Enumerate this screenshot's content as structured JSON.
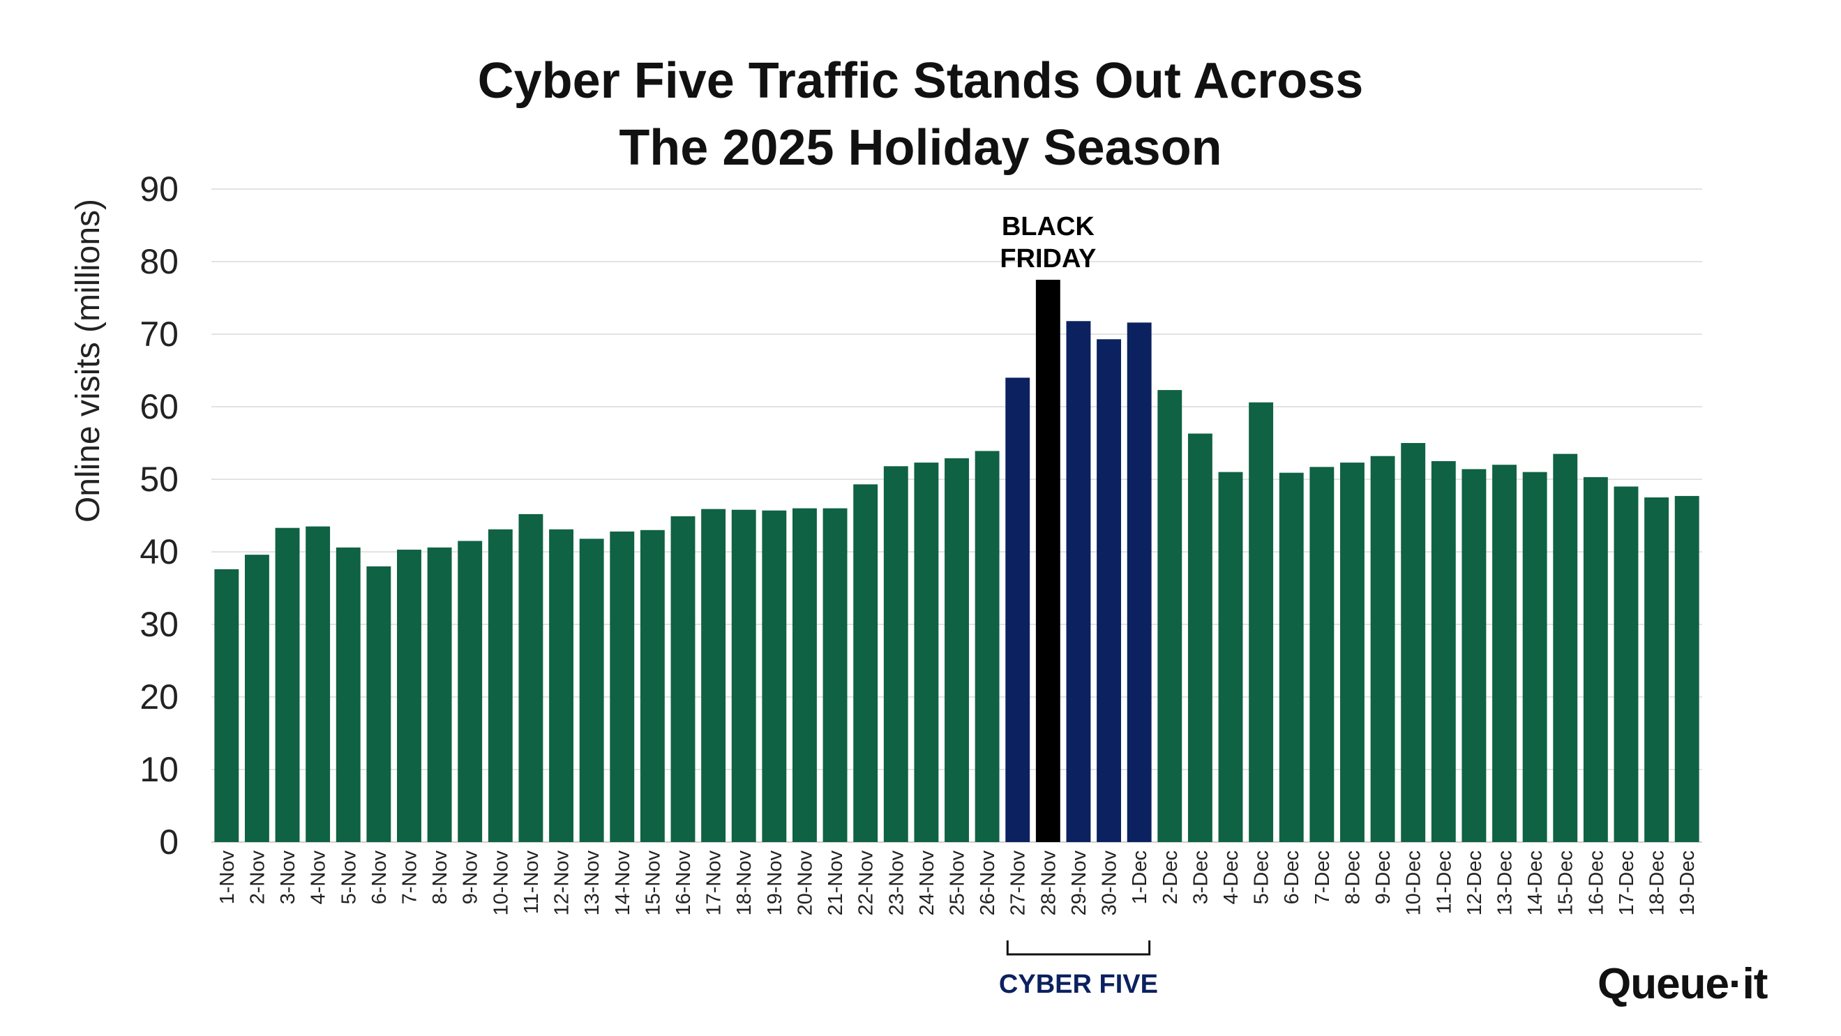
{
  "chart_data": {
    "type": "bar",
    "title": [
      "Cyber Five Traffic Stands Out Across",
      "The 2025 Holiday Season"
    ],
    "ylabel": "Online visits (millions)",
    "xlabel": "",
    "ylim": [
      0,
      90
    ],
    "yticks": [
      0,
      10,
      20,
      30,
      40,
      50,
      60,
      70,
      80,
      90
    ],
    "grid": true,
    "categories": [
      "1-Nov",
      "2-Nov",
      "3-Nov",
      "4-Nov",
      "5-Nov",
      "6-Nov",
      "7-Nov",
      "8-Nov",
      "9-Nov",
      "10-Nov",
      "11-Nov",
      "12-Nov",
      "13-Nov",
      "14-Nov",
      "15-Nov",
      "16-Nov",
      "17-Nov",
      "18-Nov",
      "19-Nov",
      "20-Nov",
      "21-Nov",
      "22-Nov",
      "23-Nov",
      "24-Nov",
      "25-Nov",
      "26-Nov",
      "27-Nov",
      "28-Nov",
      "29-Nov",
      "30-Nov",
      "1-Dec",
      "2-Dec",
      "3-Dec",
      "4-Dec",
      "5-Dec",
      "6-Dec",
      "7-Dec",
      "8-Dec",
      "9-Dec",
      "10-Dec",
      "11-Dec",
      "12-Dec",
      "13-Dec",
      "14-Dec",
      "15-Dec",
      "16-Dec",
      "17-Dec",
      "18-Dec",
      "19-Dec"
    ],
    "values": [
      37.6,
      39.6,
      43.3,
      43.5,
      40.6,
      38.0,
      40.3,
      40.6,
      41.5,
      43.1,
      45.2,
      43.1,
      41.8,
      42.8,
      43.0,
      44.9,
      45.9,
      45.8,
      45.7,
      46.0,
      46.0,
      49.3,
      51.8,
      52.3,
      52.9,
      53.9,
      64.0,
      77.5,
      71.8,
      69.3,
      71.6,
      62.3,
      56.3,
      51.0,
      60.6,
      50.9,
      51.7,
      52.3,
      53.2,
      55.0,
      52.5,
      51.4,
      52.0,
      51.0,
      53.5,
      50.3,
      49.0,
      47.5,
      47.7
    ],
    "colors": {
      "default": "#0f6244",
      "cyber_five": "#0b2160",
      "black_friday": "#000000"
    },
    "highlights": {
      "black_friday_index": 27,
      "cyber_five_range": [
        26,
        30
      ]
    },
    "annotations": {
      "black_friday": [
        "BLACK",
        "FRIDAY"
      ],
      "cyber_five": "CYBER FIVE"
    }
  },
  "logo": {
    "text": "Queue·it"
  }
}
